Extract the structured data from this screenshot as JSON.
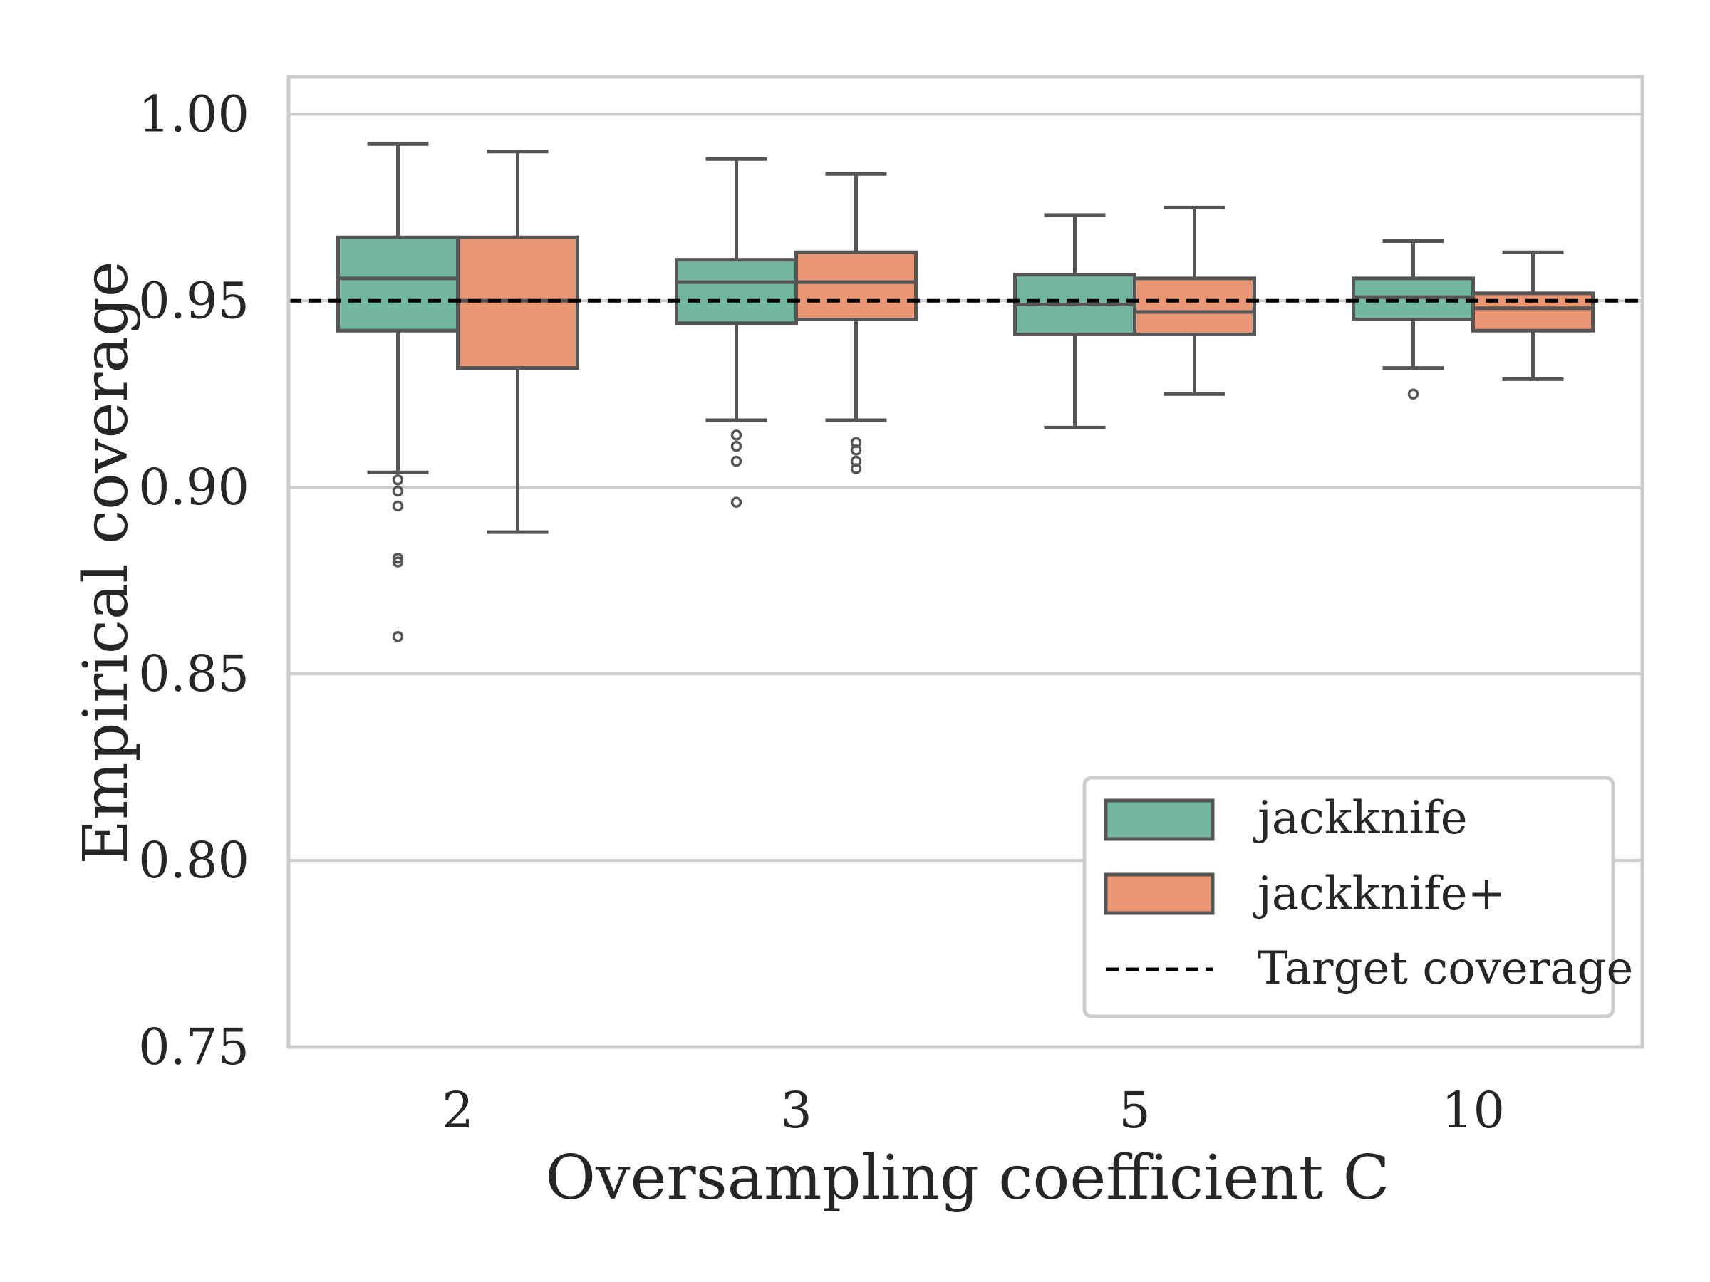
{
  "chart_data": {
    "type": "box",
    "xlabel": "Oversampling coefficient C",
    "ylabel": "Empirical coverage",
    "ylim": [
      0.75,
      1.01
    ],
    "yticks": [
      "0.75",
      "0.80",
      "0.85",
      "0.90",
      "0.95",
      "1.00"
    ],
    "categories": [
      "2",
      "3",
      "5",
      "10"
    ],
    "grid": "horizontal",
    "target_coverage": 0.95,
    "legend_position": "lower-right",
    "series": [
      {
        "name": "jackknife",
        "color": "#73b69f",
        "boxes": [
          {
            "whislo": 0.904,
            "q1": 0.942,
            "med": 0.956,
            "q3": 0.967,
            "whishi": 0.992,
            "fliers": [
              0.902,
              0.899,
              0.895,
              0.881,
              0.88,
              0.86
            ]
          },
          {
            "whislo": 0.918,
            "q1": 0.944,
            "med": 0.955,
            "q3": 0.961,
            "whishi": 0.988,
            "fliers": [
              0.914,
              0.911,
              0.907,
              0.896
            ]
          },
          {
            "whislo": 0.916,
            "q1": 0.941,
            "med": 0.949,
            "q3": 0.957,
            "whishi": 0.973,
            "fliers": []
          },
          {
            "whislo": 0.932,
            "q1": 0.945,
            "med": 0.951,
            "q3": 0.956,
            "whishi": 0.966,
            "fliers": [
              0.925
            ]
          }
        ]
      },
      {
        "name": "jackknife+",
        "color": "#e99674",
        "boxes": [
          {
            "whislo": 0.888,
            "q1": 0.932,
            "med": 0.95,
            "q3": 0.967,
            "whishi": 0.99,
            "fliers": []
          },
          {
            "whislo": 0.918,
            "q1": 0.945,
            "med": 0.955,
            "q3": 0.963,
            "whishi": 0.984,
            "fliers": [
              0.912,
              0.91,
              0.907,
              0.905
            ]
          },
          {
            "whislo": 0.925,
            "q1": 0.941,
            "med": 0.947,
            "q3": 0.956,
            "whishi": 0.975,
            "fliers": []
          },
          {
            "whislo": 0.929,
            "q1": 0.942,
            "med": 0.948,
            "q3": 0.952,
            "whishi": 0.963,
            "fliers": []
          }
        ]
      }
    ],
    "legend": {
      "entries": [
        "jackknife",
        "jackknife+",
        "Target coverage"
      ]
    }
  },
  "colors": {
    "edge": "#555555",
    "grid": "#cccccc",
    "spine": "#cccccc",
    "target_line": "#000000"
  }
}
